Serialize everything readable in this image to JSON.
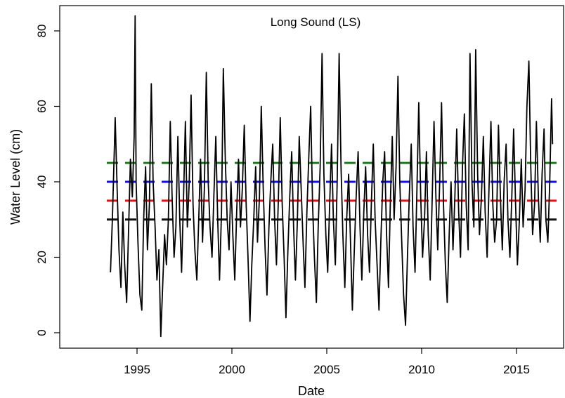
{
  "chart_data": {
    "type": "line",
    "title": "Long Sound (LS)",
    "xlabel": "Date",
    "ylabel": "Water Level (cm)",
    "xlim": [
      1991.0,
      2017.5
    ],
    "ylim": [
      -4,
      87
    ],
    "x_ticks": [
      1995,
      2000,
      2005,
      2010,
      2015
    ],
    "y_ticks": [
      0,
      20,
      40,
      60,
      80
    ],
    "grid": false,
    "legend": "none",
    "series": [
      {
        "color": "#000000",
        "points": [
          [
            1993.6,
            16
          ],
          [
            1993.7,
            30
          ],
          [
            1993.8,
            48
          ],
          [
            1993.85,
            57
          ],
          [
            1993.95,
            38
          ],
          [
            1994.05,
            22
          ],
          [
            1994.15,
            12
          ],
          [
            1994.25,
            32
          ],
          [
            1994.35,
            18
          ],
          [
            1994.45,
            8
          ],
          [
            1994.55,
            26
          ],
          [
            1994.65,
            46
          ],
          [
            1994.75,
            36
          ],
          [
            1994.85,
            52
          ],
          [
            1994.9,
            84
          ],
          [
            1994.95,
            40
          ],
          [
            1995.05,
            24
          ],
          [
            1995.15,
            10
          ],
          [
            1995.25,
            6
          ],
          [
            1995.35,
            30
          ],
          [
            1995.45,
            44
          ],
          [
            1995.55,
            22
          ],
          [
            1995.65,
            34
          ],
          [
            1995.75,
            66
          ],
          [
            1995.85,
            40
          ],
          [
            1995.95,
            28
          ],
          [
            1996.05,
            14
          ],
          [
            1996.15,
            22
          ],
          [
            1996.25,
            -1
          ],
          [
            1996.35,
            12
          ],
          [
            1996.45,
            26
          ],
          [
            1996.55,
            18
          ],
          [
            1996.65,
            30
          ],
          [
            1996.75,
            56
          ],
          [
            1996.85,
            36
          ],
          [
            1996.95,
            20
          ],
          [
            1997.05,
            28
          ],
          [
            1997.15,
            52
          ],
          [
            1997.25,
            30
          ],
          [
            1997.35,
            16
          ],
          [
            1997.45,
            36
          ],
          [
            1997.55,
            56
          ],
          [
            1997.65,
            28
          ],
          [
            1997.75,
            40
          ],
          [
            1997.85,
            63
          ],
          [
            1997.95,
            34
          ],
          [
            1998.05,
            22
          ],
          [
            1998.15,
            14
          ],
          [
            1998.25,
            30
          ],
          [
            1998.35,
            46
          ],
          [
            1998.45,
            24
          ],
          [
            1998.55,
            38
          ],
          [
            1998.65,
            69
          ],
          [
            1998.75,
            40
          ],
          [
            1998.85,
            28
          ],
          [
            1998.95,
            20
          ],
          [
            1999.05,
            36
          ],
          [
            1999.15,
            52
          ],
          [
            1999.25,
            30
          ],
          [
            1999.35,
            14
          ],
          [
            1999.45,
            32
          ],
          [
            1999.55,
            70
          ],
          [
            1999.65,
            46
          ],
          [
            1999.75,
            30
          ],
          [
            1999.85,
            22
          ],
          [
            1999.95,
            40
          ],
          [
            2000.05,
            26
          ],
          [
            2000.15,
            14
          ],
          [
            2000.25,
            32
          ],
          [
            2000.35,
            46
          ],
          [
            2000.45,
            28
          ],
          [
            2000.55,
            38
          ],
          [
            2000.65,
            55
          ],
          [
            2000.75,
            34
          ],
          [
            2000.85,
            20
          ],
          [
            2000.95,
            3
          ],
          [
            2001.05,
            18
          ],
          [
            2001.15,
            30
          ],
          [
            2001.25,
            44
          ],
          [
            2001.35,
            24
          ],
          [
            2001.45,
            36
          ],
          [
            2001.55,
            60
          ],
          [
            2001.65,
            38
          ],
          [
            2001.75,
            22
          ],
          [
            2001.85,
            10
          ],
          [
            2001.95,
            28
          ],
          [
            2002.05,
            40
          ],
          [
            2002.15,
            50
          ],
          [
            2002.25,
            30
          ],
          [
            2002.35,
            18
          ],
          [
            2002.45,
            36
          ],
          [
            2002.55,
            57
          ],
          [
            2002.65,
            34
          ],
          [
            2002.75,
            20
          ],
          [
            2002.85,
            4
          ],
          [
            2002.95,
            22
          ],
          [
            2003.05,
            36
          ],
          [
            2003.15,
            48
          ],
          [
            2003.25,
            28
          ],
          [
            2003.35,
            14
          ],
          [
            2003.45,
            30
          ],
          [
            2003.55,
            52
          ],
          [
            2003.65,
            38
          ],
          [
            2003.75,
            24
          ],
          [
            2003.85,
            12
          ],
          [
            2003.95,
            32
          ],
          [
            2004.05,
            46
          ],
          [
            2004.15,
            60
          ],
          [
            2004.25,
            34
          ],
          [
            2004.35,
            20
          ],
          [
            2004.45,
            8
          ],
          [
            2004.55,
            28
          ],
          [
            2004.65,
            44
          ],
          [
            2004.75,
            74
          ],
          [
            2004.85,
            42
          ],
          [
            2004.95,
            26
          ],
          [
            2005.05,
            16
          ],
          [
            2005.15,
            34
          ],
          [
            2005.25,
            50
          ],
          [
            2005.35,
            30
          ],
          [
            2005.45,
            18
          ],
          [
            2005.55,
            40
          ],
          [
            2005.65,
            74
          ],
          [
            2005.75,
            44
          ],
          [
            2005.85,
            26
          ],
          [
            2005.95,
            12
          ],
          [
            2006.05,
            30
          ],
          [
            2006.15,
            42
          ],
          [
            2006.25,
            24
          ],
          [
            2006.35,
            6
          ],
          [
            2006.45,
            22
          ],
          [
            2006.55,
            36
          ],
          [
            2006.65,
            48
          ],
          [
            2006.75,
            28
          ],
          [
            2006.85,
            14
          ],
          [
            2006.95,
            32
          ],
          [
            2007.05,
            44
          ],
          [
            2007.15,
            26
          ],
          [
            2007.25,
            16
          ],
          [
            2007.35,
            34
          ],
          [
            2007.45,
            50
          ],
          [
            2007.55,
            30
          ],
          [
            2007.65,
            18
          ],
          [
            2007.75,
            6
          ],
          [
            2007.85,
            24
          ],
          [
            2007.95,
            40
          ],
          [
            2008.05,
            48
          ],
          [
            2008.15,
            26
          ],
          [
            2008.25,
            12
          ],
          [
            2008.35,
            34
          ],
          [
            2008.45,
            52
          ],
          [
            2008.55,
            30
          ],
          [
            2008.65,
            44
          ],
          [
            2008.75,
            68
          ],
          [
            2008.85,
            40
          ],
          [
            2008.95,
            24
          ],
          [
            2009.05,
            10
          ],
          [
            2009.15,
            2
          ],
          [
            2009.25,
            20
          ],
          [
            2009.35,
            36
          ],
          [
            2009.45,
            50
          ],
          [
            2009.55,
            28
          ],
          [
            2009.65,
            16
          ],
          [
            2009.75,
            38
          ],
          [
            2009.85,
            61
          ],
          [
            2009.95,
            36
          ],
          [
            2010.05,
            20
          ],
          [
            2010.15,
            30
          ],
          [
            2010.25,
            48
          ],
          [
            2010.35,
            26
          ],
          [
            2010.45,
            14
          ],
          [
            2010.55,
            34
          ],
          [
            2010.65,
            56
          ],
          [
            2010.75,
            36
          ],
          [
            2010.85,
            22
          ],
          [
            2010.95,
            40
          ],
          [
            2011.05,
            61
          ],
          [
            2011.15,
            34
          ],
          [
            2011.25,
            18
          ],
          [
            2011.35,
            8
          ],
          [
            2011.45,
            26
          ],
          [
            2011.55,
            40
          ],
          [
            2011.65,
            22
          ],
          [
            2011.75,
            36
          ],
          [
            2011.85,
            54
          ],
          [
            2011.95,
            32
          ],
          [
            2012.05,
            20
          ],
          [
            2012.15,
            44
          ],
          [
            2012.25,
            58
          ],
          [
            2012.35,
            34
          ],
          [
            2012.45,
            22
          ],
          [
            2012.55,
            74
          ],
          [
            2012.65,
            40
          ],
          [
            2012.75,
            28
          ],
          [
            2012.85,
            75
          ],
          [
            2012.95,
            42
          ],
          [
            2013.05,
            26
          ],
          [
            2013.15,
            36
          ],
          [
            2013.25,
            52
          ],
          [
            2013.35,
            32
          ],
          [
            2013.45,
            20
          ],
          [
            2013.55,
            38
          ],
          [
            2013.65,
            56
          ],
          [
            2013.75,
            34
          ],
          [
            2013.85,
            24
          ],
          [
            2013.95,
            30
          ],
          [
            2014.05,
            55
          ],
          [
            2014.15,
            36
          ],
          [
            2014.25,
            22
          ],
          [
            2014.35,
            40
          ],
          [
            2014.45,
            50
          ],
          [
            2014.55,
            30
          ],
          [
            2014.65,
            20
          ],
          [
            2014.75,
            36
          ],
          [
            2014.85,
            54
          ],
          [
            2014.95,
            34
          ],
          [
            2015.05,
            18
          ],
          [
            2015.15,
            30
          ],
          [
            2015.25,
            46
          ],
          [
            2015.35,
            28
          ],
          [
            2015.45,
            38
          ],
          [
            2015.55,
            60
          ],
          [
            2015.65,
            72
          ],
          [
            2015.75,
            44
          ],
          [
            2015.85,
            26
          ],
          [
            2015.95,
            34
          ],
          [
            2016.05,
            56
          ],
          [
            2016.15,
            36
          ],
          [
            2016.25,
            24
          ],
          [
            2016.35,
            42
          ],
          [
            2016.45,
            54
          ],
          [
            2016.55,
            30
          ],
          [
            2016.65,
            24
          ],
          [
            2016.75,
            40
          ],
          [
            2016.85,
            62
          ],
          [
            2016.9,
            50
          ]
        ]
      }
    ],
    "reference_lines": [
      {
        "y": 45,
        "color": "#1f7a1f",
        "style": "dashed"
      },
      {
        "y": 40,
        "color": "#1010ee",
        "style": "dashed"
      },
      {
        "y": 35,
        "color": "#ee1010",
        "style": "dashed"
      },
      {
        "y": 30,
        "color": "#111111",
        "style": "dashed"
      }
    ]
  }
}
